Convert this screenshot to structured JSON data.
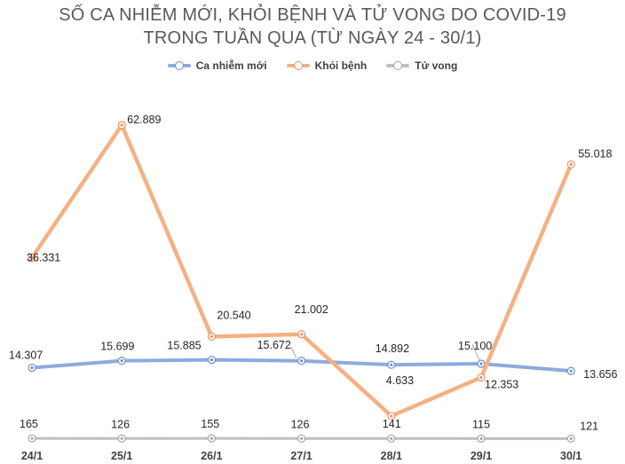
{
  "chart_data": {
    "type": "line",
    "title": [
      "SỐ CA NHIỄM MỚI, KHỎI BỆNH VÀ TỬ VONG DO COVID-19",
      "TRONG TUẦN QUA (TỪ NGÀY 24 - 30/1)"
    ],
    "categories": [
      "24/1",
      "25/1",
      "26/1",
      "27/1",
      "28/1",
      "29/1",
      "30/1"
    ],
    "series": [
      {
        "name": "Ca nhiễm mới",
        "values": [
          14307,
          15699,
          15885,
          15672,
          14892,
          15100,
          13656
        ],
        "labels": [
          "14.307",
          "15.699",
          "15.885",
          "15.672",
          "14.892",
          "15.100",
          "13.656"
        ],
        "color": "#8faadc"
      },
      {
        "name": "Khỏi bệnh",
        "values": [
          36331,
          62889,
          20540,
          21002,
          4633,
          12353,
          55018
        ],
        "labels": [
          "36.331",
          "62.889",
          "20.540",
          "21.002",
          "4.633",
          "12.353",
          "55.018"
        ],
        "color": "#f4b183"
      },
      {
        "name": "Tử vong",
        "values": [
          165,
          126,
          155,
          126,
          141,
          115,
          121
        ],
        "labels": [
          "165",
          "126",
          "155",
          "126",
          "141",
          "115",
          "121"
        ],
        "color": "#bfbfbf"
      }
    ],
    "legend_position": "top",
    "grid": false
  }
}
